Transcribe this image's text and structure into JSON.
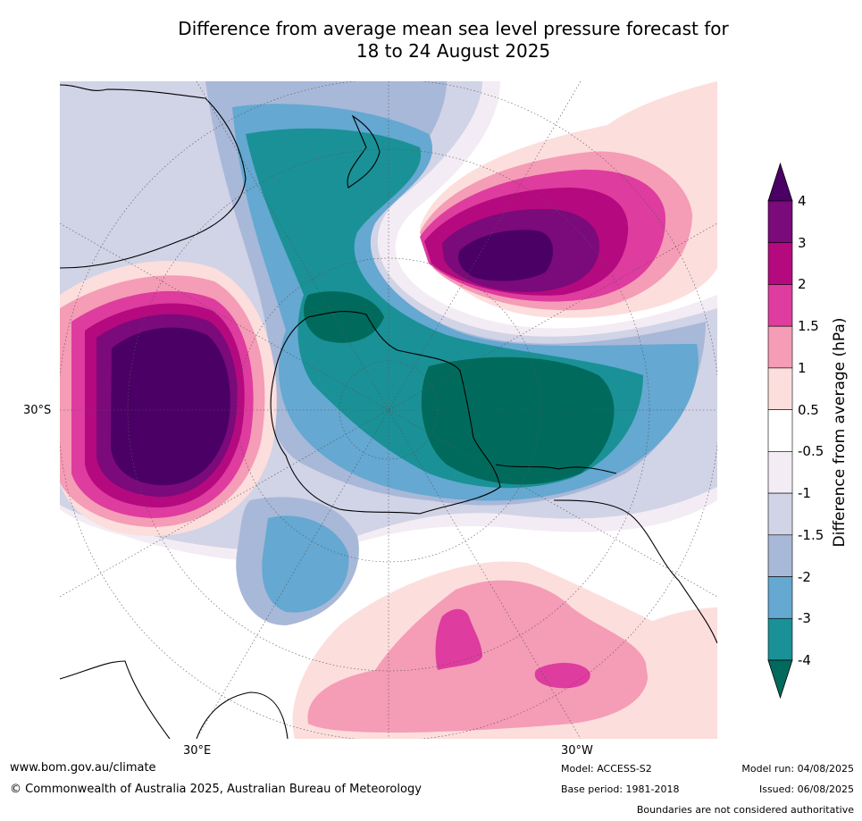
{
  "title": {
    "line1": "Difference from average mean sea level pressure forecast for",
    "line2": "18 to 24 August 2025"
  },
  "map": {
    "projection": "south polar stereographic",
    "lat_label": "30°S",
    "lon_labels": {
      "left": "30°E",
      "right": "30°W"
    },
    "features": [
      {
        "name": "high-anomaly-southern-indian-ocean",
        "value_class": ">4",
        "color": "#4b0066"
      },
      {
        "name": "high-anomaly-south-pacific",
        "value_class": ">4",
        "color": "#4b0066"
      },
      {
        "name": "low-anomaly-antarctica-pacific-sector",
        "value_class": "<-4",
        "color": "#006b5c"
      },
      {
        "name": "low-anomaly-tasman-sea",
        "value_class": "-4 to -3",
        "color": "#1a9196"
      },
      {
        "name": "positive-anomaly-south-america-atlantic",
        "value_class": "1.5 to 2",
        "color": "#de3c9e"
      }
    ]
  },
  "colorbar": {
    "label": "Difference from average (hPa)",
    "ticks": [
      "4",
      "3",
      "2",
      "1.5",
      "1",
      "0.5",
      "-0.5",
      "-1",
      "-1.5",
      "-2",
      "-3",
      "-4"
    ],
    "bands": [
      {
        "range": ">4",
        "color": "#4b0066"
      },
      {
        "range": "3 to 4",
        "color": "#7b0a7b"
      },
      {
        "range": "2 to 3",
        "color": "#b5097f"
      },
      {
        "range": "1.5 to 2",
        "color": "#de3c9e"
      },
      {
        "range": "1 to 1.5",
        "color": "#f59cb6"
      },
      {
        "range": "0.5 to 1",
        "color": "#fcdedd"
      },
      {
        "range": "-0.5 to 0.5",
        "color": "#ffffff"
      },
      {
        "range": "-1 to -0.5",
        "color": "#f3ecf4"
      },
      {
        "range": "-1.5 to -1",
        "color": "#d1d3e6"
      },
      {
        "range": "-2 to -1.5",
        "color": "#a8b8d8"
      },
      {
        "range": "-3 to -2",
        "color": "#65a8d1"
      },
      {
        "range": "-4 to -3",
        "color": "#1a9196"
      },
      {
        "range": "<-4",
        "color": "#006b5c"
      }
    ]
  },
  "footer": {
    "website": "www.bom.gov.au/climate",
    "copyright": "© Commonwealth of Australia 2025, Australian Bureau of Meteorology",
    "model": "Model: ACCESS-S2",
    "base_period": "Base period: 1981-2018",
    "model_run": "Model run: 04/08/2025",
    "issued": "Issued: 06/08/2025",
    "disclaimer": "Boundaries are not considered authoritative"
  }
}
